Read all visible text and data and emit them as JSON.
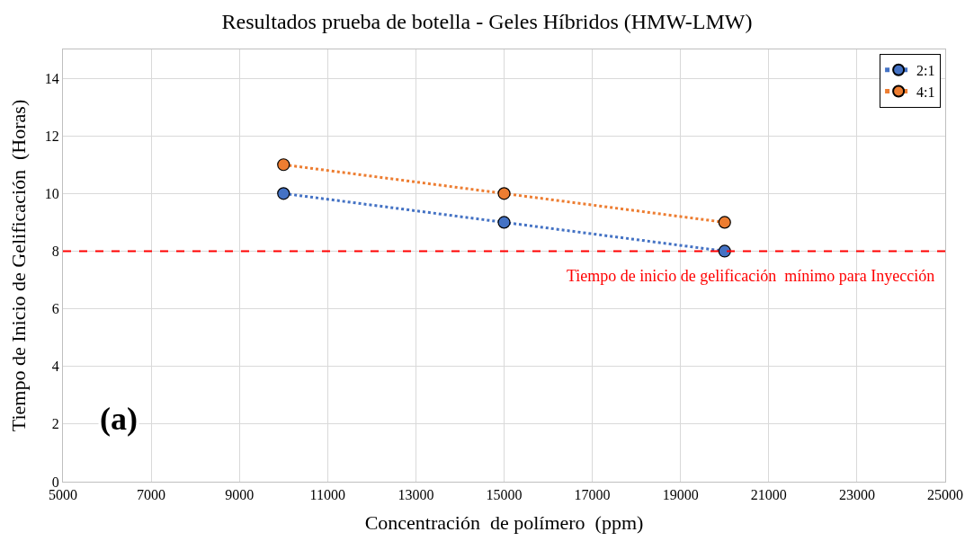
{
  "chart_data": {
    "type": "line",
    "title": "Resultados prueba de botella - Geles Híbridos (HMW-LMW)",
    "xlabel": "Concentración  de polímero  (ppm)",
    "ylabel": "Tiempo de Inicio de Gelificación  (Horas)",
    "x": [
      10000,
      15000,
      20000
    ],
    "series": [
      {
        "name": "2:1",
        "color": "#4472c4",
        "values": [
          10,
          9,
          8
        ]
      },
      {
        "name": "4:1",
        "color": "#ed7d31",
        "values": [
          11,
          10,
          9
        ]
      }
    ],
    "xlim": [
      5000,
      25000
    ],
    "xticks": [
      5000,
      7000,
      9000,
      11000,
      13000,
      15000,
      17000,
      19000,
      21000,
      23000,
      25000
    ],
    "ylim": [
      0,
      15
    ],
    "yticks": [
      0,
      2,
      4,
      6,
      8,
      10,
      12,
      14
    ],
    "ref_lines": [
      {
        "axis": "y",
        "value": 8,
        "label": "Tiempo de inicio de gelificación  mínimo para Inyección",
        "color": "#ff0000",
        "line_style": "dashed"
      }
    ],
    "annotations": [
      "(a)"
    ],
    "grid": true,
    "legend": "top right",
    "marker": "circle",
    "line_style": "dotted"
  }
}
